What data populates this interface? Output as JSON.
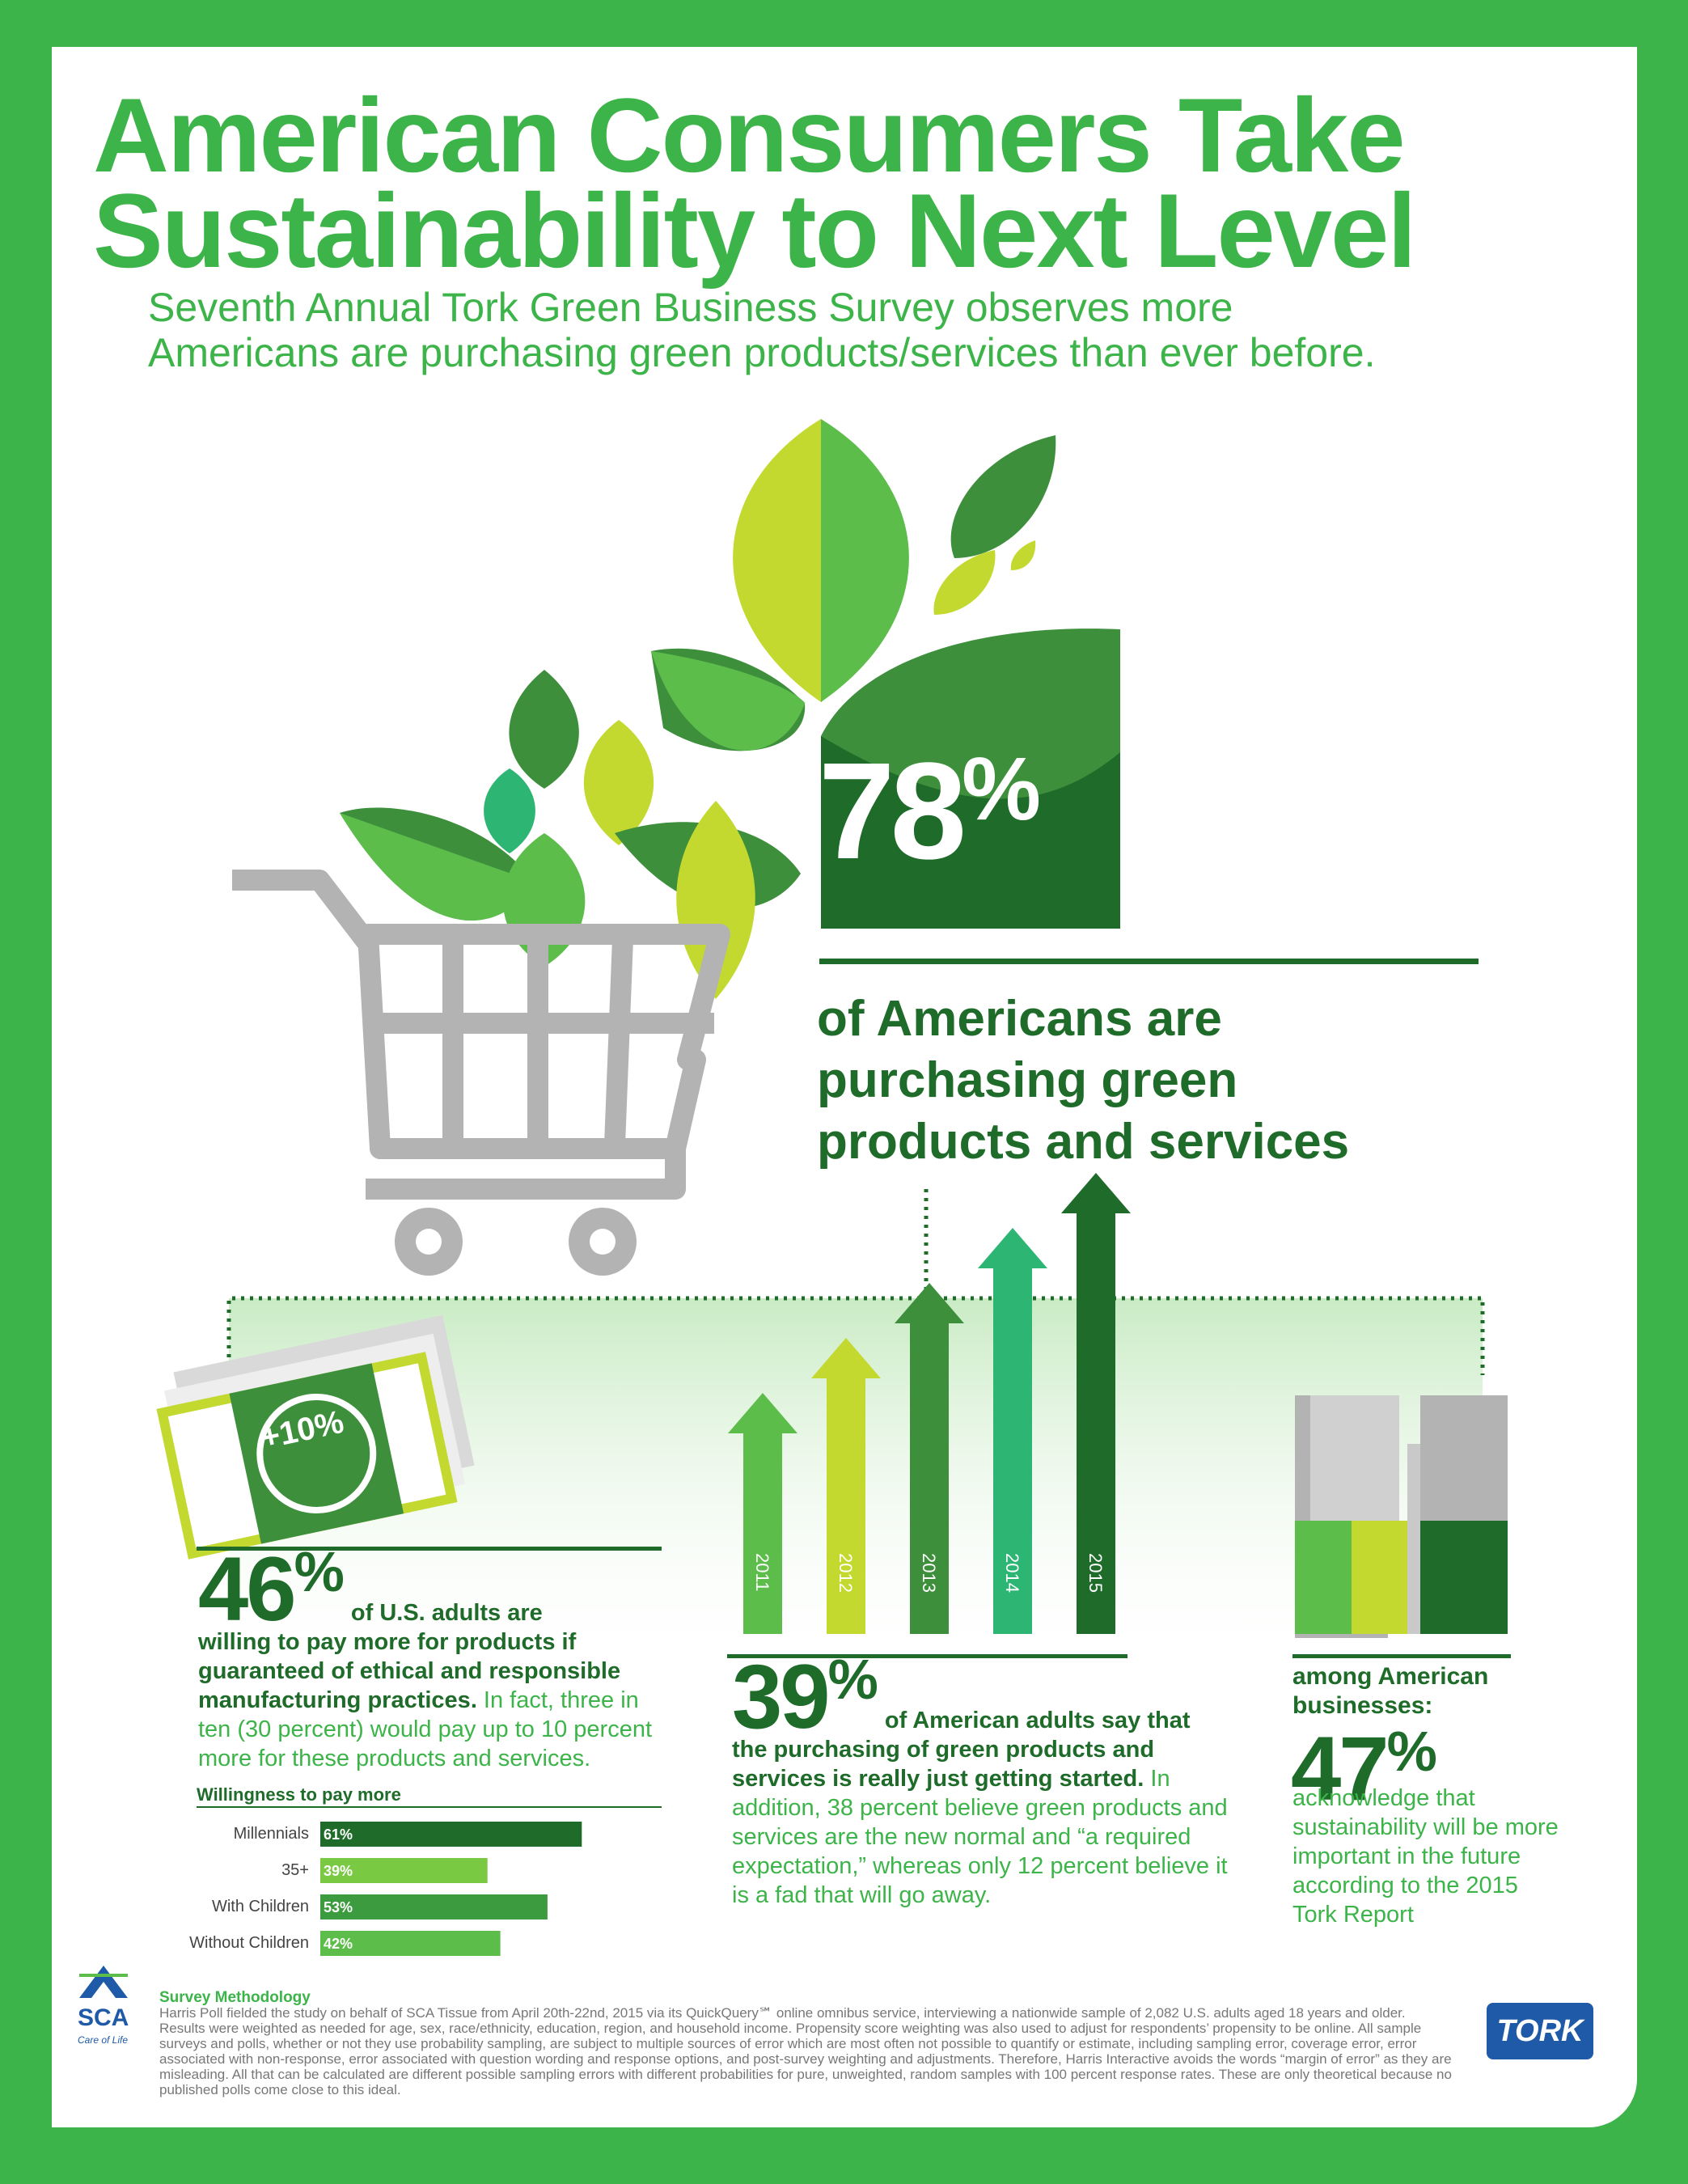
{
  "header": {
    "title_line1": "American Consumers Take",
    "title_line2": "Sustainability to Next Level",
    "subtitle_line1": "Seventh Annual Tork Green Business Survey observes more",
    "subtitle_line2": "Americans are purchasing green products/services than ever before."
  },
  "hero": {
    "value": "78",
    "pct": "%",
    "line1": "of Americans are",
    "line2": "purchasing green",
    "line3": "products and services"
  },
  "money": {
    "label": "+10%"
  },
  "stat46": {
    "value": "46",
    "pct": "%",
    "lead_a": "of U.S. adults are",
    "lead_b": "willing to pay more for products if guaranteed of ethical and responsible manufacturing practices.",
    "rest": " In fact, three in ten (30 percent) would pay up to 10 percent more for these products and services."
  },
  "stat39": {
    "value": "39",
    "pct": "%",
    "lead_a": "of American adults say that",
    "lead_b": "the purchasing of green products and services is really just getting started.",
    "rest": " In addition, 38 percent believe green products and services are the new normal and “a required expectation,” whereas only 12 percent believe it is a fad that will go away."
  },
  "stat47": {
    "lead": "among American businesses:",
    "value": "47",
    "pct": "%",
    "text": "acknowledge that sustainability will be more important in the future according to the 2015 Tork Report"
  },
  "chart_data": [
    {
      "type": "bar",
      "orientation": "horizontal",
      "title": "Willingness to pay more",
      "categories": [
        "Millennials",
        "35+",
        "With Children",
        "Without Children"
      ],
      "values": [
        61,
        39,
        53,
        42
      ],
      "value_labels": [
        "61%",
        "39%",
        "53%",
        "42%"
      ],
      "colors": [
        "#1e6b2a",
        "#7ac943",
        "#3d9b3f",
        "#5cbd4a"
      ],
      "xlim": [
        0,
        100
      ]
    },
    {
      "type": "bar",
      "categories": [
        "2011",
        "2012",
        "2013",
        "2014",
        "2015"
      ],
      "values": [
        1,
        2,
        3,
        4,
        5
      ],
      "colors": [
        "#5cbd4a",
        "#c3d930",
        "#3d8f3c",
        "#2db574",
        "#1e6b2a"
      ]
    }
  ],
  "methodology": {
    "title": "Survey Methodology",
    "text": "Harris Poll fielded the study on behalf of SCA Tissue from April 20th-22nd, 2015 via its QuickQuery℠ online omnibus service, interviewing a nationwide sample of 2,082 U.S. adults aged 18 years and older. Results were weighted as needed for age, sex, race/ethnicity, education, region, and household income. Propensity score weighting was also used to adjust for respondents’ propensity to be online. All sample surveys and polls, whether or not they use probability sampling, are subject to multiple sources of error which are most often not possible to quantify or estimate, including sampling error, coverage error, error associated with non-response, error associated with question wording and response options, and post-survey weighting and adjustments. Therefore, Harris Interactive avoids the words “margin of error” as they are misleading. All that can be calculated are different possible sampling errors with different probabilities for pure, unweighted, random samples with 100 percent response rates. These are only theoretical because no published polls come close to this ideal."
  },
  "logos": {
    "sca": "SCA",
    "sca_tagline": "Care of Life",
    "tork": "TORK"
  }
}
